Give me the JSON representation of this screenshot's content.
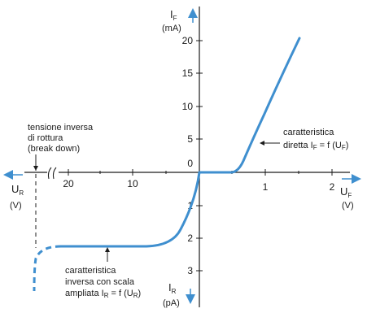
{
  "colors": {
    "axis": "#1c1c1c",
    "curve": "#3f8fcf",
    "arrow": "#3f8fcf"
  },
  "axes": {
    "forward_current": {
      "symbol": "I",
      "subscript": "F",
      "unit": "(mA)"
    },
    "forward_voltage": {
      "symbol": "U",
      "subscript": "F",
      "unit": "(V)"
    },
    "reverse_voltage": {
      "symbol": "U",
      "subscript": "R",
      "unit": "(V)"
    },
    "reverse_current": {
      "symbol": "I",
      "subscript": "R",
      "unit": "(pA)"
    }
  },
  "ticks": {
    "forward_current": [
      "20",
      "15",
      "10",
      "5"
    ],
    "forward_voltage": [
      "1",
      "2"
    ],
    "reverse_voltage": [
      "20",
      "10"
    ],
    "reverse_current": [
      "1",
      "2",
      "3"
    ],
    "origin": "0"
  },
  "annotations": {
    "breakdown": {
      "line1": "tensione inversa",
      "line2": "di rottura",
      "line3": "(break down)"
    },
    "forward": {
      "line1": "caratteristica",
      "line2": "diretta I",
      "sub": "F",
      "line2b": " = f (U",
      "sub2": "F",
      "line2c": ")"
    },
    "reverse": {
      "line1": "caratteristica",
      "line2": "inversa con scala",
      "line3": "ampliata I",
      "sub": "R",
      "line3b": " = f (U",
      "sub2": "R",
      "line3c": ")"
    }
  }
}
